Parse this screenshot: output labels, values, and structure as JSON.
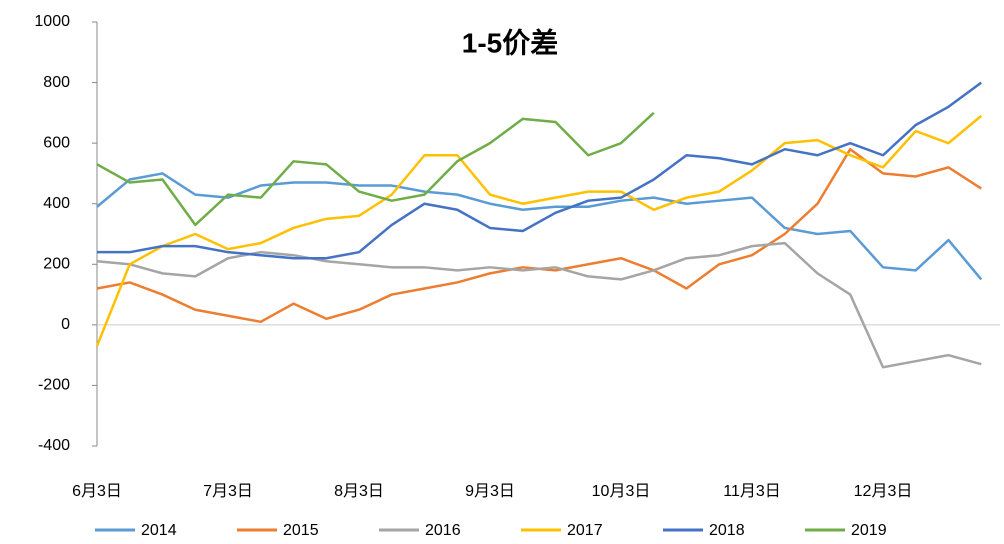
{
  "chart_data": {
    "type": "line",
    "title": "1-5价差",
    "categories": [
      "6月3日",
      null,
      null,
      null,
      "7月3日",
      null,
      null,
      null,
      "8月3日",
      null,
      null,
      null,
      "9月3日",
      null,
      null,
      null,
      "10月3日",
      null,
      null,
      null,
      "11月3日",
      null,
      null,
      null,
      "12月3日",
      null,
      null,
      null
    ],
    "series": [
      {
        "name": "2014",
        "color": "#5b9bd5",
        "values": [
          390,
          480,
          500,
          430,
          420,
          460,
          470,
          470,
          460,
          460,
          440,
          430,
          400,
          380,
          390,
          390,
          410,
          420,
          400,
          410,
          420,
          320,
          300,
          310,
          190,
          180,
          280,
          150
        ]
      },
      {
        "name": "2015",
        "color": "#ed7d31",
        "values": [
          120,
          140,
          100,
          50,
          30,
          10,
          70,
          20,
          50,
          100,
          120,
          140,
          170,
          190,
          180,
          200,
          220,
          180,
          120,
          200,
          230,
          300,
          400,
          580,
          500,
          490,
          520,
          450
        ]
      },
      {
        "name": "2016",
        "color": "#a5a5a5",
        "values": [
          210,
          200,
          170,
          160,
          220,
          240,
          230,
          210,
          200,
          190,
          190,
          180,
          190,
          180,
          190,
          160,
          150,
          180,
          220,
          230,
          260,
          270,
          170,
          100,
          -140,
          -120,
          -100,
          -130
        ]
      },
      {
        "name": "2017",
        "color": "#ffc000",
        "values": [
          -70,
          200,
          260,
          300,
          250,
          270,
          320,
          350,
          360,
          430,
          560,
          560,
          430,
          400,
          420,
          440,
          440,
          380,
          420,
          440,
          510,
          600,
          610,
          560,
          520,
          640,
          600,
          690
        ]
      },
      {
        "name": "2018",
        "color": "#4472c4",
        "values": [
          240,
          240,
          260,
          260,
          240,
          230,
          220,
          220,
          240,
          330,
          400,
          380,
          320,
          310,
          370,
          410,
          420,
          480,
          560,
          550,
          530,
          580,
          560,
          600,
          560,
          660,
          720,
          800
        ]
      },
      {
        "name": "2019",
        "color": "#70ad47",
        "values": [
          530,
          470,
          480,
          330,
          430,
          420,
          540,
          530,
          440,
          410,
          430,
          540,
          600,
          680,
          670,
          560,
          600,
          700,
          null,
          null,
          null,
          null,
          null,
          null,
          null,
          null,
          null,
          null
        ]
      }
    ],
    "ylim": [
      -400,
      1000
    ],
    "yticks": [
      -400,
      -200,
      0,
      200,
      400,
      600,
      800,
      1000
    ]
  }
}
